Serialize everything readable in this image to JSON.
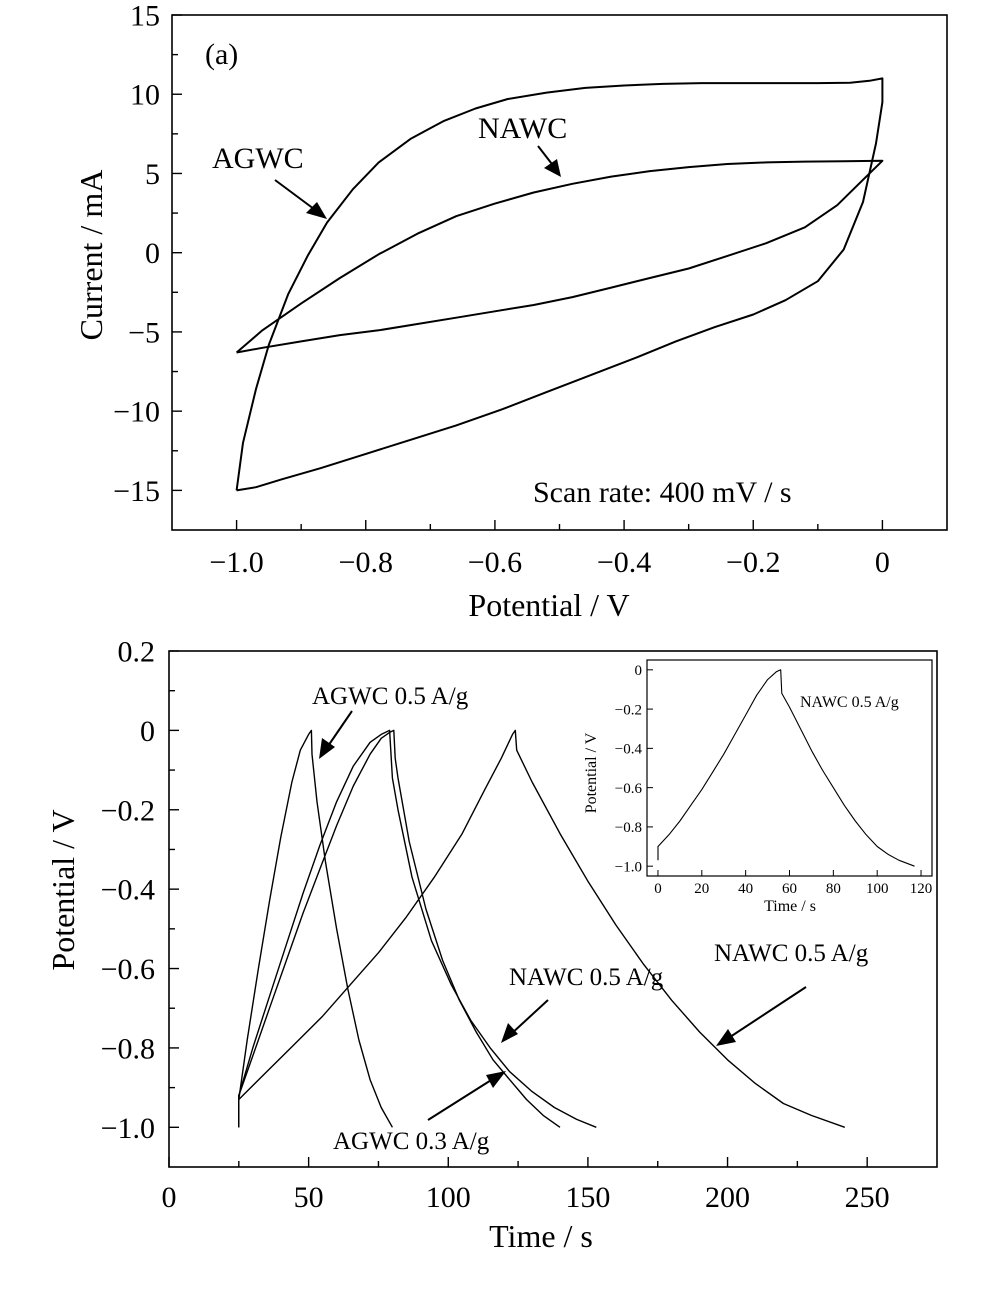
{
  "chart_data": [
    {
      "type": "line",
      "panel_label": "(a)",
      "xlabel": "Potential / V",
      "ylabel": "Current / mA",
      "xlim": [
        -1.1,
        0.1
      ],
      "ylim": [
        -17.5,
        15
      ],
      "xticks": [
        -1.0,
        -0.8,
        -0.6,
        -0.4,
        -0.2,
        0
      ],
      "xtick_labels": [
        "−1.0",
        "−0.8",
        "−0.6",
        "−0.4",
        "−0.2",
        "0"
      ],
      "yticks": [
        -15,
        -10,
        -5,
        0,
        5,
        10,
        15
      ],
      "ytick_labels": [
        "−15",
        "−10",
        "−5",
        "0",
        "5",
        "10",
        "15"
      ],
      "annotation": "Scan rate: 400 mV / s",
      "series": [
        {
          "name": "AGWC",
          "x": [
            -1.0,
            -0.99,
            -0.97,
            -0.95,
            -0.92,
            -0.89,
            -0.86,
            -0.82,
            -0.78,
            -0.73,
            -0.68,
            -0.63,
            -0.58,
            -0.52,
            -0.46,
            -0.4,
            -0.34,
            -0.28,
            -0.22,
            -0.16,
            -0.1,
            -0.05,
            -0.02,
            0.0,
            0.0,
            -0.01,
            -0.03,
            -0.06,
            -0.1,
            -0.15,
            -0.2,
            -0.26,
            -0.32,
            -0.38,
            -0.45,
            -0.52,
            -0.59,
            -0.66,
            -0.73,
            -0.8,
            -0.87,
            -0.93,
            -0.97,
            -1.0,
            -1.0
          ],
          "y": [
            -15.0,
            -12.0,
            -8.6,
            -5.8,
            -2.6,
            -0.2,
            1.9,
            4.0,
            5.7,
            7.2,
            8.3,
            9.1,
            9.7,
            10.1,
            10.4,
            10.55,
            10.65,
            10.7,
            10.7,
            10.7,
            10.7,
            10.72,
            10.85,
            11.0,
            9.5,
            6.9,
            3.2,
            0.2,
            -1.8,
            -3.0,
            -3.9,
            -4.7,
            -5.6,
            -6.6,
            -7.7,
            -8.8,
            -9.9,
            -10.9,
            -11.8,
            -12.7,
            -13.6,
            -14.3,
            -14.8,
            -15.0,
            -15.0
          ]
        },
        {
          "name": "NAWC",
          "x": [
            -1.0,
            -0.96,
            -0.9,
            -0.84,
            -0.78,
            -0.72,
            -0.66,
            -0.6,
            -0.54,
            -0.48,
            -0.42,
            -0.36,
            -0.3,
            -0.24,
            -0.18,
            -0.12,
            -0.06,
            0.0,
            -0.03,
            -0.07,
            -0.12,
            -0.18,
            -0.24,
            -0.3,
            -0.36,
            -0.42,
            -0.48,
            -0.54,
            -0.6,
            -0.66,
            -0.72,
            -0.78,
            -0.84,
            -0.9,
            -0.96,
            -1.0
          ],
          "y": [
            -6.3,
            -4.9,
            -3.2,
            -1.6,
            -0.1,
            1.2,
            2.3,
            3.1,
            3.8,
            4.35,
            4.8,
            5.15,
            5.4,
            5.6,
            5.7,
            5.75,
            5.77,
            5.8,
            4.6,
            3.0,
            1.6,
            0.6,
            -0.2,
            -1.0,
            -1.6,
            -2.2,
            -2.8,
            -3.3,
            -3.7,
            -4.1,
            -4.5,
            -4.9,
            -5.2,
            -5.6,
            -6.0,
            -6.3
          ]
        }
      ],
      "arrows": [
        {
          "label": "AGWC"
        },
        {
          "label": "NAWC"
        }
      ]
    },
    {
      "type": "line",
      "xlabel": "Time / s",
      "ylabel": "Potential / V",
      "xlim": [
        0,
        275
      ],
      "ylim": [
        -1.1,
        0.2
      ],
      "xticks": [
        0,
        50,
        100,
        150,
        200,
        250
      ],
      "xtick_labels": [
        "0",
        "50",
        "100",
        "150",
        "200",
        "250"
      ],
      "yticks": [
        0.2,
        0,
        -0.2,
        -0.4,
        -0.6,
        -0.8,
        -1.0
      ],
      "ytick_labels": [
        "0.2",
        "0",
        "−0.2",
        "−0.4",
        "−0.6",
        "−0.8",
        "−1.0"
      ],
      "series": [
        {
          "name": "AGWC 0.5 A/g",
          "x": [
            25,
            25,
            28,
            32,
            36,
            40,
            44,
            47,
            50,
            51,
            51.2,
            53,
            56,
            60,
            64,
            68,
            72,
            76,
            80
          ],
          "y": [
            -1.0,
            -0.93,
            -0.78,
            -0.6,
            -0.43,
            -0.27,
            -0.13,
            -0.05,
            -0.01,
            0.0,
            -0.06,
            -0.18,
            -0.33,
            -0.5,
            -0.65,
            -0.78,
            -0.88,
            -0.95,
            -1.0
          ]
        },
        {
          "name": "AGWC 0.3 A/g",
          "x": [
            25,
            25,
            30,
            36,
            42,
            48,
            54,
            60,
            66,
            72,
            76,
            79,
            80.5,
            81,
            82,
            86,
            92,
            98,
            104,
            110,
            116,
            122,
            128,
            134,
            140
          ],
          "y": [
            -1.0,
            -0.92,
            -0.82,
            -0.7,
            -0.58,
            -0.46,
            -0.35,
            -0.24,
            -0.14,
            -0.06,
            -0.02,
            -0.005,
            0.0,
            -0.07,
            -0.12,
            -0.28,
            -0.45,
            -0.58,
            -0.68,
            -0.76,
            -0.83,
            -0.88,
            -0.93,
            -0.97,
            -1.0
          ]
        },
        {
          "name": "NAWC 0.5 A/g",
          "x": [
            25,
            25,
            30,
            36,
            42,
            48,
            54,
            60,
            66,
            72,
            76,
            79,
            79.5,
            80,
            82,
            87,
            94,
            101,
            108,
            115,
            122,
            130,
            138,
            146,
            153
          ],
          "y": [
            -1.0,
            -0.92,
            -0.8,
            -0.67,
            -0.54,
            -0.41,
            -0.29,
            -0.18,
            -0.09,
            -0.03,
            -0.01,
            0.0,
            -0.06,
            -0.12,
            -0.2,
            -0.37,
            -0.53,
            -0.64,
            -0.73,
            -0.8,
            -0.86,
            -0.91,
            -0.95,
            -0.98,
            -1.0
          ]
        },
        {
          "name": "NAWC 0.5 A/g",
          "x": [
            25,
            25,
            35,
            45,
            55,
            65,
            75,
            85,
            95,
            105,
            113,
            119,
            123,
            124,
            124.5,
            130,
            140,
            150,
            160,
            170,
            180,
            190,
            200,
            210,
            220,
            230,
            242
          ],
          "y": [
            -1.0,
            -0.93,
            -0.86,
            -0.79,
            -0.72,
            -0.64,
            -0.56,
            -0.47,
            -0.37,
            -0.26,
            -0.15,
            -0.07,
            -0.01,
            0.0,
            -0.05,
            -0.13,
            -0.26,
            -0.38,
            -0.49,
            -0.59,
            -0.68,
            -0.76,
            -0.83,
            -0.89,
            -0.94,
            -0.97,
            -1.0
          ]
        }
      ],
      "labels": [
        "AGWC 0.5 A/g",
        "AGWC 0.3 A/g",
        "NAWC 0.5 A/g",
        "NAWC 0.5 A/g"
      ],
      "inset": {
        "type": "line",
        "xlabel": "Time / s",
        "ylabel": "Potential / V",
        "label": "NAWC 0.5 A/g",
        "xlim": [
          -5,
          125
        ],
        "ylim": [
          -1.05,
          0.05
        ],
        "xticks": [
          0,
          20,
          40,
          60,
          80,
          100,
          120
        ],
        "xtick_labels": [
          "0",
          "20",
          "40",
          "60",
          "80",
          "100",
          "120"
        ],
        "yticks": [
          0,
          -0.2,
          -0.4,
          -0.6,
          -0.8,
          -1.0
        ],
        "ytick_labels": [
          "0",
          "−0.2",
          "−0.4",
          "−0.6",
          "−0.8",
          "−1.0"
        ],
        "series": [
          {
            "name": "NAWC 0.5 A/g",
            "x": [
              0,
              0,
              5,
              10,
              15,
              20,
              25,
              30,
              35,
              40,
              45,
              50,
              54,
              56,
              56.5,
              60,
              65,
              70,
              75,
              80,
              85,
              90,
              95,
              100,
              105,
              110,
              117
            ],
            "y": [
              -0.97,
              -0.9,
              -0.84,
              -0.77,
              -0.69,
              -0.61,
              -0.52,
              -0.43,
              -0.33,
              -0.23,
              -0.13,
              -0.05,
              -0.01,
              0.0,
              -0.12,
              -0.19,
              -0.3,
              -0.41,
              -0.51,
              -0.6,
              -0.69,
              -0.77,
              -0.84,
              -0.9,
              -0.94,
              -0.97,
              -1.0
            ]
          }
        ]
      }
    }
  ]
}
